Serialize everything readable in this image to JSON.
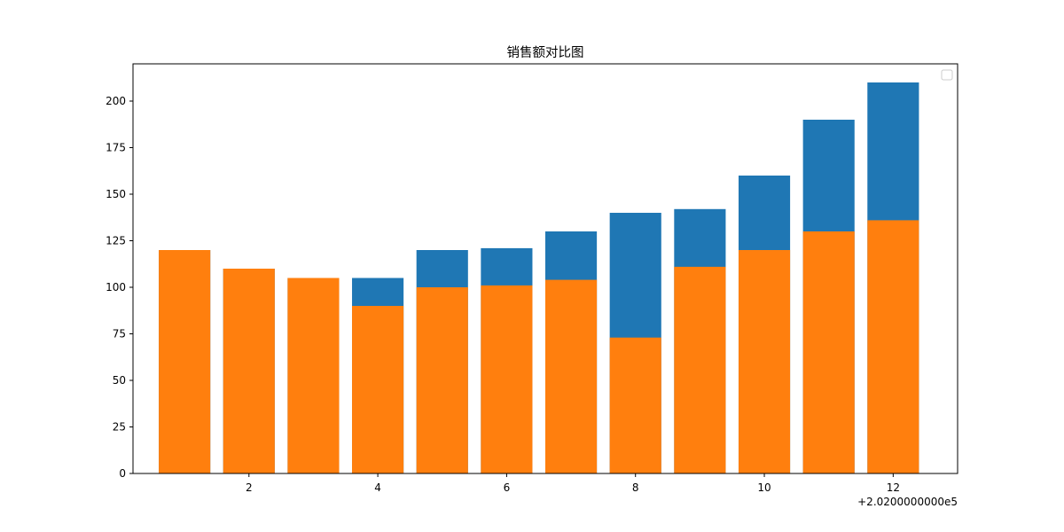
{
  "chart_data": {
    "type": "bar",
    "title": "销售额对比图",
    "xlabel": "",
    "ylabel": "",
    "x": [
      1,
      2,
      3,
      4,
      5,
      6,
      7,
      8,
      9,
      10,
      11,
      12
    ],
    "x_offset_label": "+2.0200000000e5",
    "xlim": [
      0.2,
      13.0
    ],
    "ylim": [
      0,
      220
    ],
    "x_ticks": [
      2,
      4,
      6,
      8,
      10,
      12
    ],
    "y_ticks": [
      0,
      25,
      50,
      75,
      100,
      125,
      150,
      175,
      200
    ],
    "grid": false,
    "legend": {
      "placement": "top-right",
      "entries": []
    },
    "series": [
      {
        "values": [
          120,
          110,
          105,
          105,
          120,
          121,
          130,
          140,
          142,
          160,
          190,
          210
        ],
        "color": "#1f77b4"
      },
      {
        "values": [
          120,
          110,
          105,
          90,
          100,
          101,
          104,
          73,
          111,
          120,
          130,
          136
        ],
        "color": "#ff7f0e"
      }
    ]
  }
}
